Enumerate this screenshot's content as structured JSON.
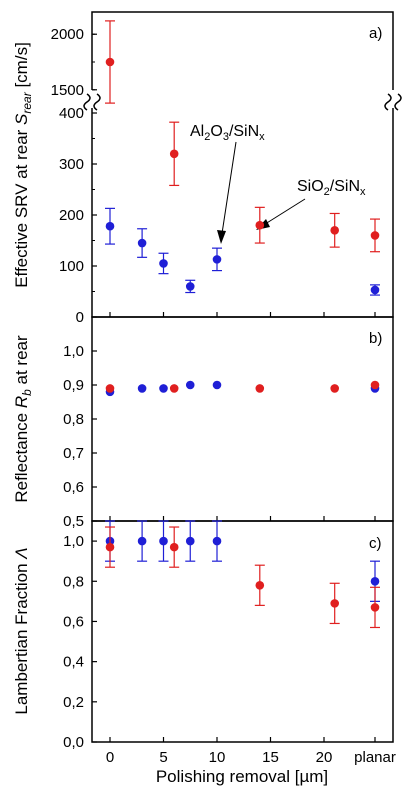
{
  "chart_data": [
    {
      "id": "a",
      "type": "scatter",
      "panel_label": "a)",
      "ylabel_main": "Effective SRV at rear ",
      "ylabel_sym": "S",
      "ylabel_sub": "rear",
      "ylabel_unit": " [cm/s]",
      "axis_break": true,
      "ylim_upper": [
        1300,
        2200
      ],
      "yticks_upper": [
        "1500",
        "2000"
      ],
      "ylim_lower": [
        0,
        400
      ],
      "yticks_lower": [
        "0",
        "100",
        "200",
        "300",
        "400"
      ],
      "series": [
        {
          "color": "#1f1fd6",
          "points": [
            {
              "x": 0,
              "y": 178,
              "err": 35
            },
            {
              "x": 3,
              "y": 145,
              "err": 28
            },
            {
              "x": 5,
              "y": 105,
              "err": 20
            },
            {
              "x": 7.5,
              "y": 60,
              "err": 12
            },
            {
              "x": 10,
              "y": 113,
              "err": 22
            },
            {
              "x": "planar",
              "y": 53,
              "err": 10
            }
          ]
        },
        {
          "color": "#e01f1f",
          "points": [
            {
              "x": 0,
              "y": 1750,
              "err": 370
            },
            {
              "x": 6,
              "y": 320,
              "err": 62
            },
            {
              "x": 14,
              "y": 180,
              "err": 35
            },
            {
              "x": 21,
              "y": 170,
              "err": 33
            },
            {
              "x": "planar",
              "y": 160,
              "err": 32
            }
          ]
        }
      ],
      "annotations": [
        {
          "base": "Al",
          "sub1": "2",
          "mid": "O",
          "sub2": "3",
          "rest": "/SiN",
          "sub3": "x"
        },
        {
          "base": "SiO",
          "sub1": "2",
          "mid": "",
          "sub2": "",
          "rest": "/SiN",
          "sub3": "x"
        }
      ]
    },
    {
      "id": "b",
      "type": "scatter",
      "panel_label": "b)",
      "ylabel_main": "Reflectance ",
      "ylabel_sym": "R",
      "ylabel_sub": "b",
      "ylabel_unit": " at rear",
      "ylim": [
        0.5,
        1.1
      ],
      "yticks": [
        "0,5",
        "0,6",
        "0,7",
        "0,8",
        "0,9",
        "1,0"
      ],
      "series": [
        {
          "color": "#1f1fd6",
          "points": [
            {
              "x": 0,
              "y": 0.88
            },
            {
              "x": 3,
              "y": 0.89
            },
            {
              "x": 5,
              "y": 0.89
            },
            {
              "x": 7.5,
              "y": 0.9
            },
            {
              "x": 10,
              "y": 0.9
            },
            {
              "x": "planar",
              "y": 0.89
            }
          ]
        },
        {
          "color": "#e01f1f",
          "points": [
            {
              "x": 0,
              "y": 0.89
            },
            {
              "x": 6,
              "y": 0.89
            },
            {
              "x": 14,
              "y": 0.89
            },
            {
              "x": 21,
              "y": 0.89
            },
            {
              "x": "planar",
              "y": 0.9
            }
          ]
        }
      ]
    },
    {
      "id": "c",
      "type": "scatter",
      "panel_label": "c)",
      "ylabel_main": "Lambertian Fraction ",
      "ylabel_sym": "Λ",
      "ylabel_sub": "",
      "ylabel_unit": "",
      "ylim": [
        0.0,
        1.1
      ],
      "yticks": [
        "0,0",
        "0,2",
        "0,4",
        "0,6",
        "0,8",
        "1,0"
      ],
      "xlabel": "Polishing removal [µm]",
      "xticks": [
        "0",
        "5",
        "10",
        "15",
        "20",
        "planar"
      ],
      "series": [
        {
          "color": "#1f1fd6",
          "points": [
            {
              "x": 0,
              "y": 1.0,
              "err": 0.1
            },
            {
              "x": 3,
              "y": 1.0,
              "err": 0.1
            },
            {
              "x": 5,
              "y": 1.0,
              "err": 0.1
            },
            {
              "x": 7.5,
              "y": 1.0,
              "err": 0.1
            },
            {
              "x": 10,
              "y": 1.0,
              "err": 0.1
            },
            {
              "x": "planar",
              "y": 0.8,
              "err": 0.1
            }
          ]
        },
        {
          "color": "#e01f1f",
          "points": [
            {
              "x": 0,
              "y": 0.97,
              "err": 0.1
            },
            {
              "x": 6,
              "y": 0.97,
              "err": 0.1
            },
            {
              "x": 14,
              "y": 0.78,
              "err": 0.1
            },
            {
              "x": 21,
              "y": 0.69,
              "err": 0.1
            },
            {
              "x": "planar",
              "y": 0.67,
              "err": 0.1
            }
          ]
        }
      ]
    }
  ]
}
